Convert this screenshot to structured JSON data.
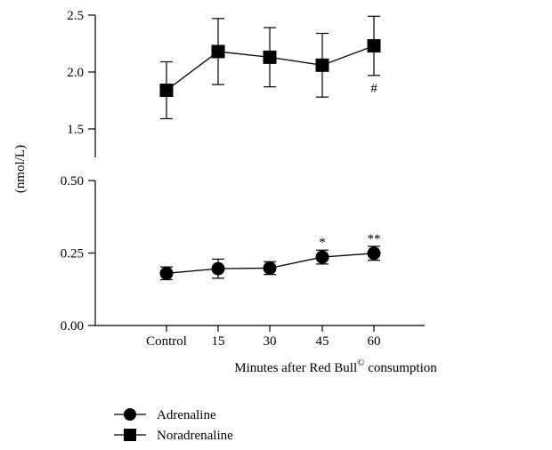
{
  "chart_data": {
    "type": "line",
    "categories": [
      "Control",
      "15",
      "30",
      "45",
      "60"
    ],
    "xlabel_prefix": "Minutes after Red Bull",
    "xlabel_superscript": "©",
    "xlabel_suffix": " consumption",
    "ylabel": "(nmol/L)",
    "upper_axis": {
      "ylim": [
        1.25,
        2.5
      ],
      "ticks": [
        "1.5",
        "2.0",
        "2.5"
      ],
      "tick_values": [
        1.5,
        2.0,
        2.5
      ]
    },
    "lower_axis": {
      "ylim": [
        0.0,
        0.5
      ],
      "ticks": [
        "0.00",
        "0.25",
        "0.50"
      ],
      "tick_values": [
        0.0,
        0.25,
        0.5
      ]
    },
    "series": [
      {
        "name": "Noradrenaline",
        "marker": "square",
        "axis": "upper",
        "values": [
          1.84,
          2.18,
          2.13,
          2.06,
          2.23
        ],
        "error": [
          0.25,
          0.29,
          0.26,
          0.28,
          0.26
        ]
      },
      {
        "name": "Adrenaline",
        "marker": "circle",
        "axis": "lower",
        "values": [
          0.18,
          0.196,
          0.198,
          0.236,
          0.249
        ],
        "error": [
          0.022,
          0.033,
          0.022,
          0.024,
          0.024
        ]
      }
    ],
    "annotations": [
      {
        "text": "#",
        "category_index": 4,
        "series": "Noradrenaline",
        "position": "below"
      },
      {
        "text": "*",
        "category_index": 3,
        "series": "Adrenaline",
        "position": "above"
      },
      {
        "text": "**",
        "category_index": 4,
        "series": "Adrenaline",
        "position": "above"
      }
    ],
    "legend": {
      "placement": "bottom-left",
      "entries": [
        "Adrenaline",
        "Noradrenaline"
      ]
    },
    "grid": false
  }
}
